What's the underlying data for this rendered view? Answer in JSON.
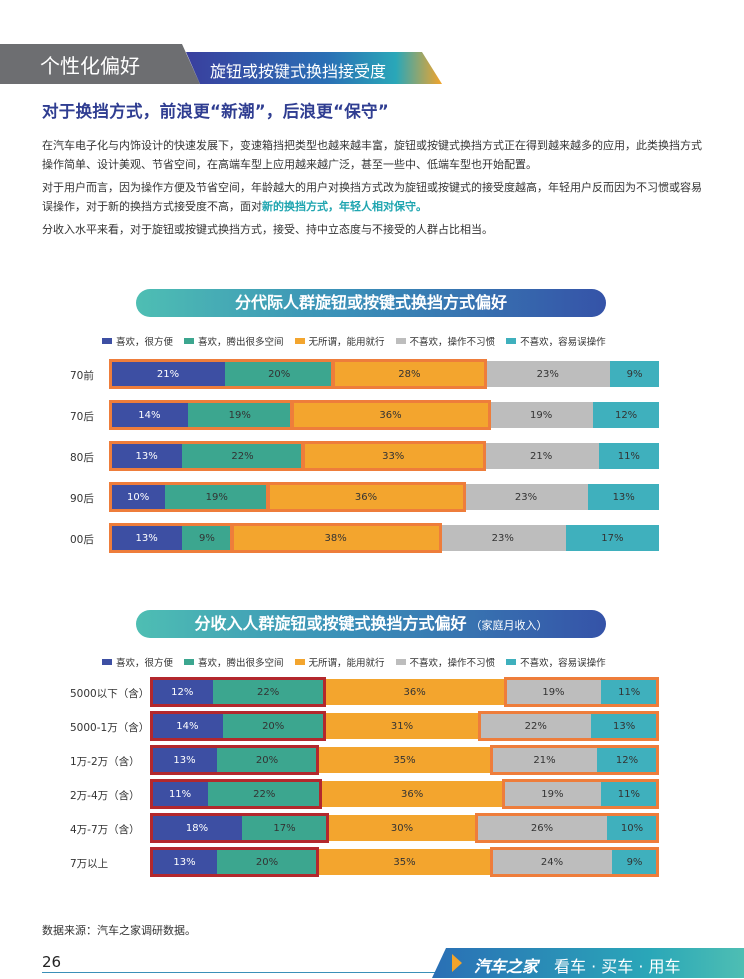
{
  "header": {
    "section": "个性化偏好",
    "subsection": "旋钮或按键式换挡接受度"
  },
  "headline": "对于换挡方式，前浪更“新潮”，后浪更“保守”",
  "paragraphs": {
    "p1": "在汽车电子化与内饰设计的快速发展下，变速箱挡把类型也越来越丰富，旋钮或按键式换挡方式正在得到越来越多的应用，此类换挡方式操作简单、设计美观、节省空间，在高端车型上应用越来越广泛，甚至一些中、低端车型也开始配置。",
    "p2_pre": "对于用户而言，因为操作方便及节省空间，年龄越大的用户对换挡方式改为旋钮或按键式的接受度越高，年轻用户反而因为不习惯或容易误操作，对于新的换挡方式接受度不高，面对",
    "p2_hl": "新的换挡方式，年轻人相对保守。",
    "p3": "分收入水平来看，对于旋钮或按键式换挡方式，接受、持中立态度与不接受的人群占比相当。"
  },
  "colors": {
    "c1": "#3d4fa3",
    "c2": "#3ca68f",
    "c3": "#f3a52e",
    "c4": "#bdbdbd",
    "c5": "#3fb0bd"
  },
  "legend": [
    "喜欢，很方便",
    "喜欢，腾出很多空间",
    "无所谓，能用就行",
    "不喜欢，操作不习惯",
    "不喜欢，容易误操作"
  ],
  "chart_data": [
    {
      "type": "bar",
      "orientation": "horizontal-stacked-100",
      "title": "分代际人群旋钮或按键式换挡方式偏好",
      "categories": [
        "70前",
        "70后",
        "80后",
        "90后",
        "00后"
      ],
      "series": [
        {
          "name": "喜欢，很方便",
          "values": [
            21,
            14,
            13,
            10,
            13
          ]
        },
        {
          "name": "喜欢，腾出很多空间",
          "values": [
            20,
            19,
            22,
            19,
            9
          ]
        },
        {
          "name": "无所谓，能用就行",
          "values": [
            28,
            36,
            33,
            36,
            38
          ]
        },
        {
          "name": "不喜欢，操作不习惯",
          "values": [
            23,
            19,
            21,
            23,
            23
          ]
        },
        {
          "name": "不喜欢，容易误操作",
          "values": [
            9,
            12,
            11,
            13,
            17
          ]
        }
      ],
      "value_labels": [
        [
          "21%",
          "20%",
          "28%",
          "23%",
          "9%"
        ],
        [
          "14%",
          "19%",
          "36%",
          "19%",
          "12%"
        ],
        [
          "13%",
          "22%",
          "33%",
          "21%",
          "11%"
        ],
        [
          "10%",
          "19%",
          "36%",
          "23%",
          "13%"
        ],
        [
          "13%",
          "9%",
          "38%",
          "23%",
          "17%"
        ]
      ]
    },
    {
      "type": "bar",
      "orientation": "horizontal-stacked-100",
      "title": "分收入人群旋钮或按键式换挡方式偏好",
      "subtitle": "（家庭月收入）",
      "categories": [
        "5000以下（含）",
        "5000-1万（含）",
        "1万-2万（含）",
        "2万-4万（含）",
        "4万-7万（含）",
        "7万以上"
      ],
      "series": [
        {
          "name": "喜欢，很方便",
          "values": [
            12,
            14,
            13,
            11,
            18,
            13
          ]
        },
        {
          "name": "喜欢，腾出很多空间",
          "values": [
            22,
            20,
            20,
            22,
            17,
            20
          ]
        },
        {
          "name": "无所谓，能用就行",
          "values": [
            36,
            31,
            35,
            36,
            30,
            35
          ]
        },
        {
          "name": "不喜欢，操作不习惯",
          "values": [
            19,
            22,
            21,
            19,
            26,
            24
          ]
        },
        {
          "name": "不喜欢，容易误操作",
          "values": [
            11,
            13,
            12,
            11,
            10,
            9
          ]
        }
      ],
      "value_labels": [
        [
          "12%",
          "22%",
          "36%",
          "19%",
          "11%"
        ],
        [
          "14%",
          "20%",
          "31%",
          "22%",
          "13%"
        ],
        [
          "13%",
          "20%",
          "35%",
          "21%",
          "12%"
        ],
        [
          "11%",
          "22%",
          "36%",
          "19%",
          "11%"
        ],
        [
          "18%",
          "17%",
          "30%",
          "26%",
          "10%"
        ],
        [
          "13%",
          "20%",
          "35%",
          "24%",
          "9%"
        ]
      ]
    }
  ],
  "source": "数据来源：汽车之家调研数据。",
  "footer": {
    "page": "26",
    "brand": "汽车之家",
    "slogan": "看车 · 买车 · 用车"
  }
}
